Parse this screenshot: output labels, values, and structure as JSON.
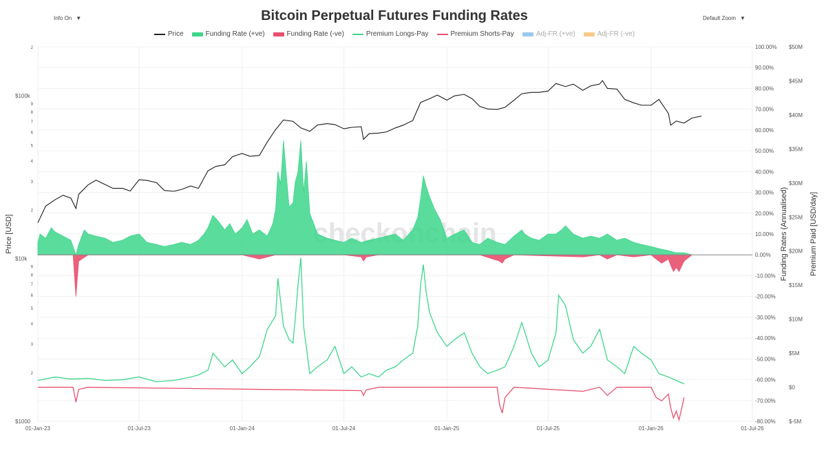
{
  "controls": {
    "info": "Info On",
    "zoom": "Default Zoom",
    "arrow": "▼"
  },
  "chart_data": {
    "type": "line",
    "title": "Bitcoin Perpetual Futures Funding Rates",
    "watermark": "checkonchain",
    "legend": [
      {
        "name": "Price",
        "color": "#222222",
        "kind": "line"
      },
      {
        "name": "Funding Rate (+ve)",
        "color": "#3dd68c",
        "kind": "box"
      },
      {
        "name": "Funding Rate (-ve)",
        "color": "#e8506e",
        "kind": "box"
      },
      {
        "name": "Premium Longs-Pay",
        "color": "#3dd68c",
        "kind": "line"
      },
      {
        "name": "Premium Shorts-Pay",
        "color": "#e8506e",
        "kind": "line"
      },
      {
        "name": "Adj-FR (+ve)",
        "color": "#9cc8ec",
        "kind": "box",
        "dim": true
      },
      {
        "name": "Adj-FR (-ve)",
        "color": "#f7c98b",
        "kind": "box",
        "dim": true
      }
    ],
    "axes": {
      "x": {
        "ticks": [
          "01-Jan-23",
          "01-Jul-23",
          "01-Jan-24",
          "01-Jul-24",
          "01-Jan-25",
          "01-Jul-25",
          "01-Jan-26",
          "01-Jul-26"
        ]
      },
      "price": {
        "label": "Price [USD]",
        "scale": "log",
        "range": [
          1000,
          200000
        ],
        "ticks": [
          "$1000",
          "2",
          "3",
          "4",
          "5",
          "6",
          "7",
          "8",
          "9",
          "$10k",
          "2",
          "3",
          "4",
          "5",
          "6",
          "7",
          "8",
          "9",
          "$100k",
          "2"
        ]
      },
      "funding": {
        "label": "Funding Rates (Annualised)",
        "range": [
          -80,
          100
        ],
        "ticks": [
          "100.00%",
          "90.00%",
          "80.00%",
          "70.00%",
          "60.00%",
          "50.00%",
          "40.00%",
          "30.00%",
          "20.00%",
          "10.00%",
          "0.00%",
          "-10.00%",
          "-20.00%",
          "-30.00%",
          "-40.00%",
          "-50.00%",
          "-60.00%",
          "-70.00%",
          "-80.00%"
        ]
      },
      "premium": {
        "label": "Premium Paid [USD/day]",
        "range": [
          -5,
          50
        ],
        "ticks": [
          "$50M",
          "$45M",
          "$40M",
          "$35M",
          "$30M",
          "$25M",
          "$20M",
          "$15M",
          "$10M",
          "$5M",
          "$0",
          "$-5M"
        ]
      }
    },
    "grid": true,
    "series": [
      {
        "name": "Price",
        "axis": "price",
        "x": [
          "01-Jan-23",
          "15-Jan-23",
          "01-Feb-23",
          "15-Feb-23",
          "01-Mar-23",
          "10-Mar-23",
          "15-Mar-23",
          "01-Apr-23",
          "15-Apr-23",
          "01-May-23",
          "15-May-23",
          "01-Jun-23",
          "15-Jun-23",
          "01-Jul-23",
          "15-Jul-23",
          "01-Aug-23",
          "15-Aug-23",
          "01-Sep-23",
          "15-Sep-23",
          "01-Oct-23",
          "15-Oct-23",
          "01-Nov-23",
          "15-Nov-23",
          "01-Dec-23",
          "15-Dec-23",
          "01-Jan-24",
          "15-Jan-24",
          "01-Feb-24",
          "15-Feb-24",
          "01-Mar-24",
          "15-Mar-24",
          "01-Apr-24",
          "15-Apr-24",
          "01-May-24",
          "15-May-24",
          "01-Jun-24",
          "15-Jun-24",
          "01-Jul-24",
          "15-Jul-24",
          "01-Aug-24",
          "05-Aug-24",
          "15-Aug-24",
          "01-Sep-24",
          "15-Sep-24",
          "01-Oct-24",
          "15-Oct-24",
          "01-Nov-24",
          "15-Nov-24",
          "01-Dec-24",
          "15-Dec-24",
          "01-Jan-25",
          "15-Jan-25",
          "01-Feb-25",
          "15-Feb-25",
          "01-Mar-25",
          "15-Mar-25",
          "01-Apr-25",
          "15-Apr-25",
          "01-May-25",
          "15-May-25",
          "01-Jun-25",
          "15-Jun-25",
          "01-Jul-25",
          "15-Jul-25",
          "01-Aug-25",
          "15-Aug-25",
          "01-Sep-25",
          "15-Sep-25",
          "01-Oct-25",
          "06-Oct-25",
          "15-Oct-25",
          "01-Nov-25",
          "15-Nov-25",
          "01-Dec-25",
          "15-Dec-25",
          "01-Jan-26",
          "15-Jan-26",
          "01-Feb-26",
          "05-Feb-26",
          "15-Feb-26",
          "01-Mar-26",
          "15-Mar-26",
          "01-Apr-26"
        ],
        "values": [
          16600,
          21000,
          23000,
          24500,
          23500,
          20300,
          24800,
          28400,
          30300,
          28500,
          27000,
          27000,
          26000,
          30500,
          30200,
          29300,
          26200,
          25900,
          26600,
          27900,
          27000,
          34600,
          36800,
          37700,
          42300,
          44200,
          42500,
          43000,
          52000,
          62000,
          71000,
          69700,
          63500,
          60500,
          66200,
          67500,
          66500,
          62700,
          64000,
          64600,
          54000,
          58500,
          59000,
          60000,
          63500,
          66000,
          70500,
          91000,
          96000,
          101000,
          94000,
          100000,
          102000,
          96000,
          86000,
          83000,
          82500,
          85000,
          94000,
          103000,
          105000,
          105000,
          107000,
          119000,
          114000,
          118000,
          108000,
          115000,
          118000,
          124000,
          111000,
          110000,
          95000,
          90500,
          87500,
          87500,
          95000,
          78000,
          66000,
          70000,
          68000,
          73000,
          75000
        ]
      },
      {
        "name": "Funding Rate (+ve)",
        "axis": "funding",
        "x": [
          "01-Jan-23",
          "05-Jan-23",
          "15-Jan-23",
          "25-Jan-23",
          "01-Feb-23",
          "15-Feb-23",
          "01-Mar-23",
          "10-Mar-23",
          "15-Mar-23",
          "25-Mar-23",
          "01-Apr-23",
          "15-Apr-23",
          "01-May-23",
          "15-May-23",
          "01-Jun-23",
          "15-Jun-23",
          "01-Jul-23",
          "15-Jul-23",
          "01-Aug-23",
          "15-Aug-23",
          "01-Sep-23",
          "15-Sep-23",
          "01-Oct-23",
          "15-Oct-23",
          "25-Oct-23",
          "01-Nov-23",
          "10-Nov-23",
          "20-Nov-23",
          "01-Dec-23",
          "10-Dec-23",
          "20-Dec-23",
          "01-Jan-24",
          "10-Jan-24",
          "20-Jan-24",
          "01-Feb-24",
          "15-Feb-24",
          "25-Feb-24",
          "01-Mar-24",
          "05-Mar-24",
          "10-Mar-24",
          "15-Mar-24",
          "25-Mar-24",
          "01-Apr-24",
          "05-Apr-24",
          "10-Apr-24",
          "15-Apr-24",
          "20-Apr-24",
          "25-Apr-24",
          "01-May-24",
          "15-May-24",
          "01-Jun-24",
          "15-Jun-24",
          "01-Jul-24",
          "15-Jul-24",
          "01-Aug-24",
          "15-Aug-24",
          "01-Sep-24",
          "15-Sep-24",
          "01-Oct-24",
          "15-Oct-24",
          "01-Nov-24",
          "10-Nov-24",
          "15-Nov-24",
          "20-Nov-24",
          "25-Nov-24",
          "01-Dec-24",
          "10-Dec-24",
          "20-Dec-24",
          "01-Jan-25",
          "15-Jan-25",
          "01-Feb-25",
          "15-Feb-25",
          "01-Mar-25",
          "15-Mar-25",
          "01-Apr-25",
          "15-Apr-25",
          "01-May-25",
          "15-May-25",
          "20-May-25",
          "01-Jun-25",
          "15-Jun-25",
          "01-Jul-25",
          "15-Jul-25",
          "25-Jul-25",
          "01-Aug-25",
          "15-Aug-25",
          "01-Sep-25",
          "15-Sep-25",
          "01-Oct-25",
          "15-Oct-25",
          "01-Nov-25",
          "15-Nov-25",
          "01-Dec-25",
          "15-Dec-25",
          "01-Jan-26",
          "15-Jan-26",
          "01-Feb-26",
          "15-Feb-26",
          "01-Mar-26",
          "15-Mar-26"
        ],
        "values": [
          6,
          10,
          8,
          13,
          11,
          9,
          7,
          0,
          5,
          12,
          10,
          9,
          8,
          6,
          7,
          9,
          10,
          6,
          5,
          4,
          5,
          6,
          5,
          7,
          10,
          13,
          19,
          16,
          12,
          15,
          10,
          13,
          17,
          10,
          12,
          9,
          15,
          22,
          40,
          34,
          55,
          23,
          25,
          35,
          40,
          55,
          30,
          45,
          20,
          10,
          8,
          7,
          6,
          8,
          6,
          7,
          8,
          9,
          10,
          7,
          12,
          18,
          27,
          38,
          33,
          28,
          22,
          17,
          8,
          10,
          12,
          6,
          5,
          8,
          6,
          5,
          9,
          12,
          10,
          8,
          7,
          10,
          10,
          12,
          14,
          10,
          8,
          9,
          8,
          10,
          7,
          8,
          6,
          5,
          4,
          3,
          2,
          1,
          1,
          0
        ]
      },
      {
        "name": "Funding Rate (-ve)",
        "axis": "funding",
        "x": [
          "01-Jan-23",
          "05-Mar-23",
          "10-Mar-23",
          "15-Mar-23",
          "01-Apr-23",
          "01-Jan-24",
          "01-Feb-24",
          "01-Mar-24",
          "01-Jul-24",
          "01-Aug-24",
          "05-Aug-24",
          "10-Aug-24",
          "01-Sep-24",
          "01-Jan-25",
          "01-Mar-25",
          "05-Apr-25",
          "10-Apr-25",
          "15-Apr-25",
          "01-May-25",
          "01-Sep-25",
          "01-Oct-25",
          "15-Oct-25",
          "01-Nov-25",
          "01-Dec-25",
          "01-Jan-26",
          "10-Jan-26",
          "20-Jan-26",
          "01-Feb-26",
          "05-Feb-26",
          "10-Feb-26",
          "15-Feb-26",
          "20-Feb-26",
          "01-Mar-26",
          "15-Mar-26"
        ],
        "values": [
          0,
          0,
          -20,
          -3,
          0,
          0,
          -2,
          0,
          0,
          -1,
          -3,
          -1,
          0,
          0,
          0,
          -3,
          -4,
          -2,
          0,
          -1,
          0,
          -2,
          0,
          -1,
          0,
          -2,
          -4,
          -2,
          -5,
          -8,
          -6,
          -8,
          -3,
          0
        ]
      },
      {
        "name": "Premium Longs-Pay",
        "axis": "premium",
        "x": [
          "01-Jan-23",
          "01-Feb-23",
          "01-Mar-23",
          "01-Apr-23",
          "01-May-23",
          "01-Jun-23",
          "01-Jul-23",
          "01-Aug-23",
          "01-Sep-23",
          "01-Oct-23",
          "15-Oct-23",
          "01-Nov-23",
          "10-Nov-23",
          "01-Dec-23",
          "15-Dec-23",
          "01-Jan-24",
          "15-Jan-24",
          "01-Feb-24",
          "15-Feb-24",
          "01-Mar-24",
          "05-Mar-24",
          "15-Mar-24",
          "25-Mar-24",
          "01-Apr-24",
          "05-Apr-24",
          "10-Apr-24",
          "15-Apr-24",
          "20-Apr-24",
          "01-May-24",
          "15-May-24",
          "01-Jun-24",
          "15-Jun-24",
          "01-Jul-24",
          "15-Jul-24",
          "01-Aug-24",
          "15-Aug-24",
          "01-Sep-24",
          "15-Sep-24",
          "01-Oct-24",
          "15-Oct-24",
          "01-Nov-24",
          "10-Nov-24",
          "15-Nov-24",
          "20-Nov-24",
          "25-Nov-24",
          "01-Dec-24",
          "15-Dec-24",
          "01-Jan-25",
          "15-Jan-25",
          "01-Feb-25",
          "15-Feb-25",
          "01-Mar-25",
          "15-Mar-25",
          "01-Apr-25",
          "15-Apr-25",
          "01-May-25",
          "15-May-25",
          "01-Jun-25",
          "15-Jun-25",
          "01-Jul-25",
          "15-Jul-25",
          "20-Jul-25",
          "01-Aug-25",
          "15-Aug-25",
          "01-Sep-25",
          "15-Sep-25",
          "01-Oct-25",
          "15-Oct-25",
          "01-Nov-25",
          "15-Nov-25",
          "01-Dec-25",
          "15-Dec-25",
          "01-Jan-26",
          "15-Jan-26",
          "01-Feb-26",
          "15-Feb-26",
          "01-Mar-26"
        ],
        "values": [
          1.0,
          1.5,
          1.2,
          1.3,
          1.0,
          1.1,
          1.5,
          0.8,
          1.0,
          1.5,
          1.8,
          2.5,
          5.0,
          3.0,
          4.0,
          2.0,
          3.0,
          4.5,
          8.5,
          10.5,
          16.0,
          9.0,
          7.0,
          6.5,
          10.0,
          15.0,
          19.0,
          9.0,
          2.0,
          3.0,
          4.0,
          6.0,
          2.0,
          3.0,
          1.5,
          2.0,
          1.5,
          2.5,
          3.0,
          4.0,
          5.0,
          9.0,
          15.0,
          18.0,
          14.0,
          11.0,
          8.0,
          6.0,
          7.0,
          8.0,
          5.0,
          3.0,
          2.0,
          2.5,
          3.0,
          6.0,
          9.5,
          5.0,
          3.0,
          4.0,
          8.0,
          13.5,
          12.0,
          7.0,
          5.0,
          6.0,
          8.5,
          4.0,
          3.0,
          2.0,
          6.0,
          5.0,
          4.0,
          2.0,
          1.5,
          1.0,
          0.5
        ]
      },
      {
        "name": "Premium Shorts-Pay",
        "axis": "premium",
        "x": [
          "01-Jan-23",
          "05-Mar-23",
          "10-Mar-23",
          "15-Mar-23",
          "01-Apr-23",
          "01-Aug-24",
          "05-Aug-24",
          "10-Aug-24",
          "01-Sep-24",
          "01-Apr-25",
          "05-Apr-25",
          "10-Apr-25",
          "15-Apr-25",
          "01-May-25",
          "01-Sep-25",
          "01-Oct-25",
          "15-Oct-25",
          "01-Nov-25",
          "01-Jan-26",
          "10-Jan-26",
          "20-Jan-26",
          "01-Feb-26",
          "05-Feb-26",
          "10-Feb-26",
          "15-Feb-26",
          "20-Feb-26",
          "01-Mar-26"
        ],
        "values": [
          0,
          0,
          -2.2,
          -0.3,
          0,
          -0.5,
          -1.2,
          -0.4,
          0,
          0,
          -2.5,
          -3.8,
          -1.5,
          0,
          -0.6,
          0,
          -1.2,
          0,
          0,
          -1.5,
          -2.0,
          -1.0,
          -3.0,
          -4.5,
          -3.5,
          -4.8,
          -1.5
        ]
      }
    ]
  }
}
